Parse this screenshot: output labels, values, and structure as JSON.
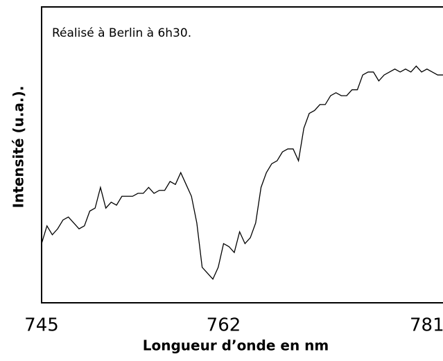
{
  "chart_data": {
    "type": "line",
    "annotation": "Réalisé à Berlin à 6h30.",
    "ylabel": "Intensité (u.a.).",
    "xlabel": "Longueur d’onde en nm",
    "x": [
      745,
      745.5,
      746,
      746.5,
      747,
      747.5,
      748,
      748.5,
      749,
      749.5,
      750,
      750.5,
      751,
      751.5,
      752,
      752.5,
      753,
      753.5,
      754,
      754.5,
      755,
      755.5,
      756,
      756.5,
      757,
      757.5,
      758,
      758.5,
      759,
      759.5,
      760,
      760.5,
      761,
      761.5,
      762,
      762.5,
      763,
      763.5,
      764,
      764.5,
      765,
      765.5,
      766,
      766.5,
      767,
      767.5,
      768,
      768.5,
      769,
      769.5,
      770,
      770.5,
      771,
      771.5,
      772,
      772.5,
      773,
      773.5,
      774,
      774.5,
      775,
      775.5,
      776,
      776.5,
      777,
      777.5,
      778,
      778.5,
      779,
      779.5,
      780,
      780.5,
      781,
      781.5,
      782,
      782.5
    ],
    "series": [
      {
        "color": "#000000",
        "values": [
          20,
          26,
          23,
          25,
          28,
          29,
          27,
          25,
          26,
          31,
          32,
          39,
          32,
          34,
          33,
          36,
          36,
          36,
          37,
          37,
          39,
          37,
          38,
          38,
          41,
          40,
          44,
          40,
          36,
          27,
          12,
          10,
          8,
          12,
          20,
          19,
          17,
          24,
          20,
          22,
          27,
          39,
          44,
          47,
          48,
          51,
          52,
          52,
          48,
          59,
          64,
          65,
          67,
          67,
          70,
          71,
          70,
          70,
          72,
          72,
          77,
          78,
          78,
          75,
          77,
          78,
          79,
          78,
          79,
          78,
          80,
          78,
          79,
          78,
          77,
          77
        ]
      }
    ],
    "xlim": [
      745,
      782.5
    ],
    "ylim": [
      0,
      100
    ],
    "xticks": [
      745,
      762,
      781
    ],
    "grid": false
  }
}
